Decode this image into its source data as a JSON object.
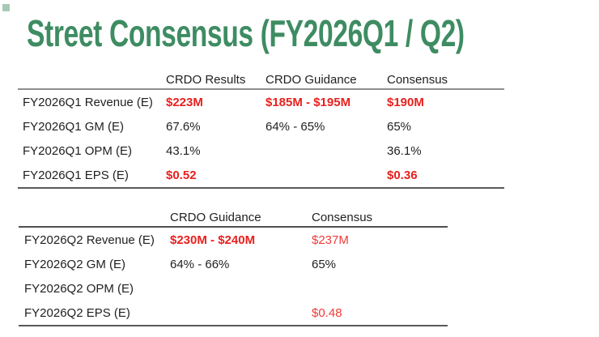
{
  "title": "Street Consensus (FY2026Q1 / Q2)",
  "colors": {
    "title_green": "#3e8c62",
    "accent_square": "#5d9f7c",
    "red_bold": "#e8201e",
    "red": "#ee3b3a",
    "text": "#1f1f1f",
    "rule_gray": "#8e8e8e",
    "rule_dark": "#595959",
    "bg": "#ffffff"
  },
  "tables": [
    {
      "name": "FY2026Q1",
      "columns": [
        "CRDO Results",
        "CRDO Guidance",
        "Consensus"
      ],
      "rows": [
        {
          "label": "FY2026Q1 Revenue (E)",
          "values": [
            {
              "text": "$223M",
              "style": "red-bold"
            },
            {
              "text": "$185M - $195M",
              "style": "red-bold"
            },
            {
              "text": "$190M",
              "style": "red-bold"
            }
          ]
        },
        {
          "label": "FY2026Q1 GM (E)",
          "values": [
            {
              "text": "67.6%",
              "style": "plain"
            },
            {
              "text": "64% - 65%",
              "style": "plain"
            },
            {
              "text": "65%",
              "style": "plain"
            }
          ]
        },
        {
          "label": "FY2026Q1 OPM (E)",
          "values": [
            {
              "text": "43.1%",
              "style": "plain"
            },
            {
              "text": "",
              "style": "plain"
            },
            {
              "text": "36.1%",
              "style": "plain"
            }
          ]
        },
        {
          "label": "FY2026Q1 EPS (E)",
          "values": [
            {
              "text": "$0.52",
              "style": "red-bold"
            },
            {
              "text": "",
              "style": "plain"
            },
            {
              "text": "$0.36",
              "style": "red-bold"
            }
          ]
        }
      ]
    },
    {
      "name": "FY2026Q2",
      "columns": [
        "CRDO Guidance",
        "Consensus"
      ],
      "rows": [
        {
          "label": "FY2026Q2 Revenue (E)",
          "values": [
            {
              "text": "$230M - $240M",
              "style": "red-bold"
            },
            {
              "text": "$237M",
              "style": "red"
            }
          ]
        },
        {
          "label": "FY2026Q2 GM (E)",
          "values": [
            {
              "text": "64% - 66%",
              "style": "plain"
            },
            {
              "text": "65%",
              "style": "plain"
            }
          ]
        },
        {
          "label": "FY2026Q2 OPM (E)",
          "values": [
            {
              "text": "",
              "style": "plain"
            },
            {
              "text": "",
              "style": "plain"
            }
          ]
        },
        {
          "label": "FY2026Q2 EPS (E)",
          "values": [
            {
              "text": "",
              "style": "plain"
            },
            {
              "text": "$0.48",
              "style": "red"
            }
          ]
        }
      ]
    }
  ]
}
